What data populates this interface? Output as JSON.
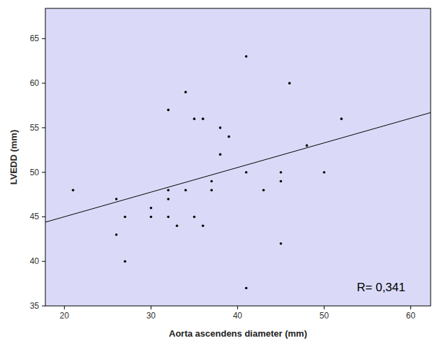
{
  "chart_data": {
    "type": "scatter",
    "x_label": "Aorta ascendens diameter (mm)",
    "y_label": "LVEDD (mm)",
    "annotation": "R= 0,341",
    "xlim": [
      17.8,
      62.3
    ],
    "ylim": [
      35,
      68.4
    ],
    "xticks": [
      20,
      30,
      40,
      50,
      60
    ],
    "yticks": [
      35,
      40,
      45,
      50,
      55,
      60,
      65
    ],
    "grid": false,
    "series": [
      {
        "type": "scatter",
        "marker": "circle",
        "color": "#000000",
        "x": [
          21,
          26,
          26,
          27,
          27,
          30,
          30,
          32,
          32,
          32,
          32,
          33,
          34,
          34,
          35,
          35,
          36,
          36,
          37,
          37,
          38,
          38,
          39,
          41,
          41,
          41,
          43,
          45,
          45,
          45,
          46,
          48,
          50,
          52
        ],
        "values": [
          48,
          47,
          43,
          45,
          40,
          46,
          45,
          57,
          48,
          47,
          45,
          44,
          59,
          48,
          56,
          45,
          56,
          44,
          49,
          48,
          55,
          52,
          54,
          63,
          50,
          37,
          48,
          50,
          49,
          42,
          60,
          53,
          50,
          56
        ]
      },
      {
        "type": "line",
        "line_style": "solid",
        "color": "#000000",
        "x": [
          17.8,
          62.3
        ],
        "values": [
          44.4,
          56.7
        ]
      }
    ]
  }
}
